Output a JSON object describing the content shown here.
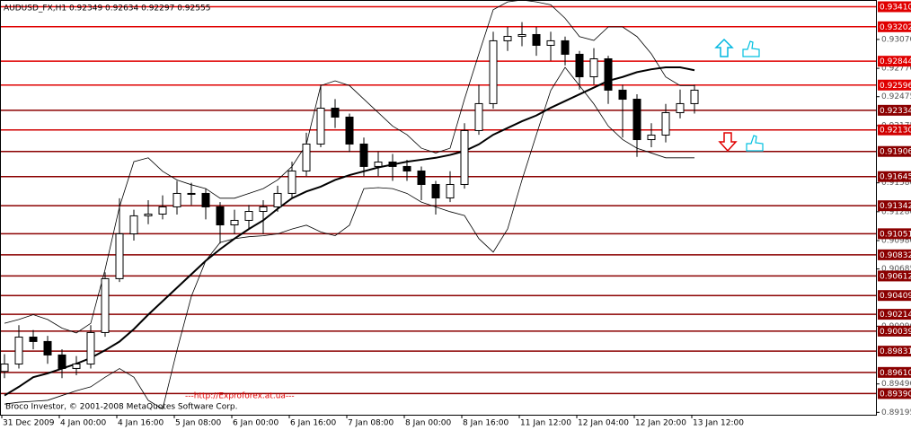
{
  "chart_data": {
    "type": "candlestick",
    "title": "AUDUSD_FX,H1  0.92349 0.92634 0.92297 0.92555",
    "copyright": "Broco Investor, © 2001-2008 MetaQuotes Software Corp.",
    "watermark": "---http://Exproforex.at.ua---",
    "categories": [
      "31 Dec 2009",
      null,
      null,
      null,
      "4 Jan 00:00",
      null,
      null,
      null,
      "4 Jan 16:00",
      null,
      null,
      null,
      "5 Jan 08:00",
      null,
      null,
      null,
      "6 Jan 00:00",
      null,
      null,
      null,
      "6 Jan 16:00",
      null,
      null,
      null,
      "7 Jan 08:00",
      null,
      null,
      null,
      "8 Jan 00:00",
      null,
      null,
      null,
      "8 Jan 16:00",
      null,
      null,
      null,
      "11 Jan 12:00",
      null,
      null,
      null,
      "12 Jan 04:00",
      null,
      null,
      null,
      "12 Jan 20:00",
      null,
      null,
      null,
      "13 Jan 12:00"
    ],
    "open": [
      0.8962,
      0.89697,
      0.89977,
      0.89931,
      0.89791,
      0.89651,
      0.89697,
      0.90024,
      0.90584,
      0.9105,
      0.91237,
      0.91255,
      0.9133,
      0.9147,
      0.9147,
      0.9133,
      0.91143,
      0.9119,
      0.91283,
      0.9133,
      0.9147,
      0.91703,
      0.91983,
      0.92356,
      0.92263,
      0.91983,
      0.9175,
      0.91796,
      0.9175,
      0.91703,
      0.91563,
      0.91423,
      0.91563,
      0.92123,
      0.92403,
      0.93056,
      0.93102,
      0.93121,
      0.93009,
      0.93056,
      0.92916,
      0.92682,
      0.92869,
      0.92543,
      0.92449,
      0.92029,
      0.92076,
      0.92309,
      0.92403
    ],
    "high": [
      0.898,
      0.901,
      0.9005,
      0.8999,
      0.8985,
      0.8978,
      0.901,
      0.9065,
      0.9142,
      0.913,
      0.914,
      0.9145,
      0.916,
      0.9158,
      0.9152,
      0.9138,
      0.913,
      0.9135,
      0.914,
      0.9155,
      0.918,
      0.921,
      0.926,
      0.9245,
      0.923,
      0.9205,
      0.919,
      0.9188,
      0.9182,
      0.9175,
      0.916,
      0.917,
      0.922,
      0.926,
      0.9315,
      0.932,
      0.9325,
      0.932,
      0.9315,
      0.931,
      0.9295,
      0.9298,
      0.929,
      0.926,
      0.925,
      0.922,
      0.924,
      0.9255,
      0.926
    ],
    "low": [
      0.8955,
      0.8965,
      0.8985,
      0.897,
      0.8955,
      0.8958,
      0.8965,
      0.8998,
      0.9055,
      0.9098,
      0.9115,
      0.912,
      0.9125,
      0.9135,
      0.912,
      0.9095,
      0.9105,
      0.911,
      0.9105,
      0.9128,
      0.9142,
      0.9165,
      0.9195,
      0.9215,
      0.919,
      0.9165,
      0.9165,
      0.916,
      0.916,
      0.914,
      0.9125,
      0.9138,
      0.9152,
      0.9208,
      0.9235,
      0.9295,
      0.93,
      0.929,
      0.9285,
      0.928,
      0.9255,
      0.926,
      0.924,
      0.9205,
      0.9185,
      0.9195,
      0.92,
      0.9225,
      0.923
    ],
    "close": [
      0.89697,
      0.89977,
      0.89931,
      0.89791,
      0.89651,
      0.89697,
      0.90024,
      0.90584,
      0.9105,
      0.91237,
      0.91255,
      0.9133,
      0.9147,
      0.9147,
      0.9133,
      0.91143,
      0.9119,
      0.91283,
      0.9133,
      0.9147,
      0.91703,
      0.91983,
      0.92356,
      0.92263,
      0.91983,
      0.9175,
      0.91796,
      0.9175,
      0.91703,
      0.91563,
      0.91423,
      0.91563,
      0.92123,
      0.92403,
      0.93056,
      0.93102,
      0.93121,
      0.93009,
      0.93056,
      0.92916,
      0.92682,
      0.92869,
      0.92543,
      0.92449,
      0.92029,
      0.92076,
      0.92309,
      0.92403,
      0.92543
    ],
    "lines": [
      {
        "color": "#000000",
        "width": 2,
        "values": [
          0.8937,
          0.8946,
          0.8956,
          0.896,
          0.8965,
          0.897,
          0.8976,
          0.8984,
          0.8993,
          0.9006,
          0.9021,
          0.9035,
          0.9049,
          0.9063,
          0.9077,
          0.9089,
          0.91,
          0.911,
          0.9119,
          0.9131,
          0.9142,
          0.9149,
          0.9154,
          0.9161,
          0.9166,
          0.917,
          0.9174,
          0.9177,
          0.918,
          0.9182,
          0.9184,
          0.9187,
          0.9191,
          0.9198,
          0.9208,
          0.9215,
          0.9222,
          0.9228,
          0.9236,
          0.9243,
          0.925,
          0.9257,
          0.9264,
          0.9268,
          0.9273,
          0.9276,
          0.9278,
          0.9278,
          0.9275
        ]
      },
      {
        "color": "#000000",
        "width": 0.8,
        "values": [
          0.9012,
          0.9016,
          0.9021,
          0.9016,
          0.9007,
          0.9002,
          0.9012,
          0.9068,
          0.9133,
          0.918,
          0.9184,
          0.917,
          0.9161,
          0.9156,
          0.9152,
          0.9142,
          0.9142,
          0.9147,
          0.9152,
          0.9161,
          0.9175,
          0.9198,
          0.9259,
          0.9264,
          0.9259,
          0.9245,
          0.9231,
          0.9217,
          0.9208,
          0.9194,
          0.9189,
          0.9194,
          0.9245,
          0.9292,
          0.9338,
          0.9346,
          0.9348,
          0.9346,
          0.9343,
          0.9329,
          0.931,
          0.9306,
          0.932,
          0.932,
          0.931,
          0.9292,
          0.9268,
          0.9259,
          0.9259
        ]
      },
      {
        "color": "#000000",
        "width": 0.8,
        "values": [
          0.8928,
          0.893,
          0.8931,
          0.8932,
          0.8937,
          0.8942,
          0.8946,
          0.8956,
          0.8965,
          0.8956,
          0.8932,
          0.8923,
          0.8984,
          0.904,
          0.9077,
          0.9096,
          0.91,
          0.9102,
          0.9103,
          0.9105,
          0.911,
          0.9114,
          0.9107,
          0.9103,
          0.9114,
          0.9152,
          0.9153,
          0.9152,
          0.9147,
          0.9138,
          0.9133,
          0.9128,
          0.9124,
          0.91,
          0.9086,
          0.911,
          0.9161,
          0.9208,
          0.9254,
          0.9278,
          0.9259,
          0.924,
          0.9217,
          0.9203,
          0.9194,
          0.9189,
          0.9184,
          0.9184,
          0.9184
        ]
      }
    ],
    "levels": [
      {
        "value": 0.9341,
        "label": "0.93410",
        "color": "#e00000"
      },
      {
        "value": 0.93202,
        "label": "0.93202",
        "color": "#e00000"
      },
      {
        "value": 0.92844,
        "label": "0.92844",
        "color": "#e00000"
      },
      {
        "value": 0.92596,
        "label": "0.92596",
        "color": "#e00000"
      },
      {
        "value": 0.92334,
        "label": "0.92334",
        "color": "#8b0000"
      },
      {
        "value": 0.9213,
        "label": "0.92130",
        "color": "#d00000"
      },
      {
        "value": 0.91906,
        "label": "0.91906",
        "color": "#8b0000"
      },
      {
        "value": 0.91645,
        "label": "0.91645",
        "color": "#8b0000"
      },
      {
        "value": 0.91342,
        "label": "0.91342",
        "color": "#8b0000"
      },
      {
        "value": 0.91051,
        "label": "0.91051",
        "color": "#8b0000"
      },
      {
        "value": 0.90832,
        "label": "0.90832",
        "color": "#8b0000"
      },
      {
        "value": 0.90612,
        "label": "0.90612",
        "color": "#8b0000"
      },
      {
        "value": 0.90409,
        "label": "0.90409",
        "color": "#8b0000"
      },
      {
        "value": 0.90214,
        "label": "0.90214",
        "color": "#8b0000"
      },
      {
        "value": 0.90039,
        "label": "0.90039",
        "color": "#8b0000"
      },
      {
        "value": 0.89831,
        "label": "0.89831",
        "color": "#8b0000"
      },
      {
        "value": 0.8961,
        "label": "0.89610",
        "color": "#8b0000"
      },
      {
        "value": 0.8939,
        "label": "0.89390",
        "color": "#8b0000"
      }
    ],
    "ylim": [
      0.8917,
      0.9348
    ],
    "yticks": [
      {
        "value": 0.9307,
        "label": "0.93070"
      },
      {
        "value": 0.9277,
        "label": "0.92770"
      },
      {
        "value": 0.92475,
        "label": "0.92475"
      },
      {
        "value": 0.92175,
        "label": "0.92175"
      },
      {
        "value": 0.9158,
        "label": "0.91580"
      },
      {
        "value": 0.9128,
        "label": "0.91280"
      },
      {
        "value": 0.9098,
        "label": "0.90980"
      },
      0.90685,
      {
        "value": 0.9009,
        "label": "0.90090"
      },
      {
        "value": 0.8949,
        "label": "0.89490"
      },
      0.89195
    ]
  }
}
